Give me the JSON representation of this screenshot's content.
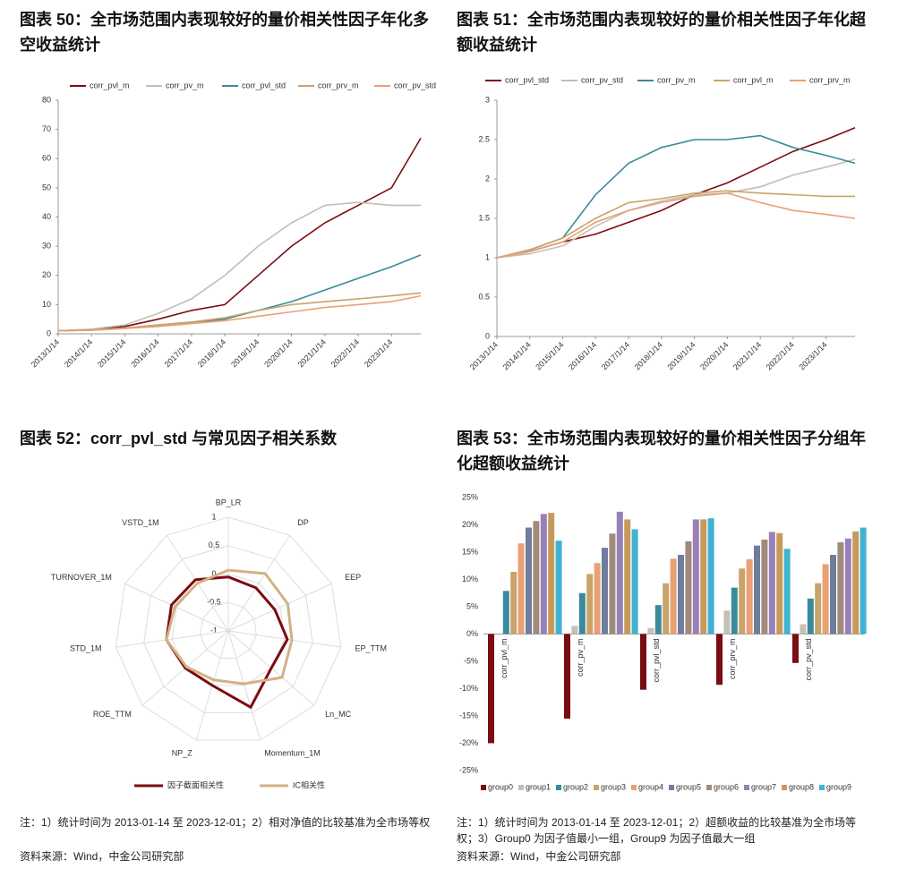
{
  "chart_data": [
    {
      "type": "line",
      "title": "图表 50：全市场范围内表现较好的量价相关性因子年化多空收益统计",
      "x": [
        "2013/1/14",
        "2014/1/14",
        "2015/1/14",
        "2016/1/14",
        "2017/1/14",
        "2018/1/14",
        "2019/1/14",
        "2020/1/14",
        "2021/1/14",
        "2022/1/14",
        "2023/1/14",
        "2023/12/1"
      ],
      "xlim": [
        "2013/1/14",
        "2023/12/1"
      ],
      "xticks": [
        "2013/1/14",
        "2014/1/14",
        "2015/1/14",
        "2016/1/14",
        "2017/1/14",
        "2018/1/14",
        "2019/1/14",
        "2020/1/14",
        "2021/1/14",
        "2022/1/14",
        "2023/1/14"
      ],
      "ylim": [
        0,
        80
      ],
      "yticks": [
        0,
        10,
        20,
        30,
        40,
        50,
        60,
        70,
        80
      ],
      "series": [
        {
          "name": "corr_pvl_m",
          "color": "#7b0c12",
          "values": [
            1,
            1.5,
            2.5,
            5,
            8,
            10,
            20,
            30,
            38,
            44,
            50,
            67
          ]
        },
        {
          "name": "corr_pv_m",
          "color": "#c2bfb2",
          "values": [
            1,
            1.6,
            3,
            7,
            12,
            20,
            30,
            38,
            44,
            45,
            44,
            44
          ]
        },
        {
          "name": "corr_pvl_std",
          "color": "#3a8a9c",
          "values": [
            1,
            1.3,
            2,
            3,
            4,
            5,
            8,
            11,
            15,
            19,
            23,
            27
          ]
        },
        {
          "name": "corr_prv_m",
          "color": "#c9a46a",
          "values": [
            1,
            1.3,
            2,
            3,
            4,
            5.5,
            8,
            10,
            11,
            12,
            13,
            14
          ]
        },
        {
          "name": "corr_pv_std",
          "color": "#e9a074",
          "values": [
            1,
            1.2,
            1.8,
            2.5,
            3.5,
            4.5,
            6,
            7.5,
            9,
            10,
            11,
            13
          ]
        }
      ]
    },
    {
      "type": "line",
      "title": "图表 51：全市场范围内表现较好的量价相关性因子年化超额收益统计",
      "x": [
        "2013/1/14",
        "2014/1/14",
        "2015/1/14",
        "2016/1/14",
        "2017/1/14",
        "2018/1/14",
        "2019/1/14",
        "2020/1/14",
        "2021/1/14",
        "2022/1/14",
        "2023/1/14",
        "2023/12/1"
      ],
      "xlim": [
        "2013/1/14",
        "2023/12/1"
      ],
      "xticks": [
        "2013/1/14",
        "2014/1/14",
        "2015/1/14",
        "2016/1/14",
        "2017/1/14",
        "2018/1/14",
        "2019/1/14",
        "2020/1/14",
        "2021/1/14",
        "2022/1/14",
        "2023/1/14"
      ],
      "ylim": [
        0,
        3
      ],
      "yticks": [
        0,
        0.5,
        1,
        1.5,
        2,
        2.5,
        3
      ],
      "series": [
        {
          "name": "corr_pvl_std",
          "color": "#7b0c12",
          "values": [
            1,
            1.08,
            1.2,
            1.3,
            1.45,
            1.6,
            1.8,
            1.95,
            2.15,
            2.35,
            2.5,
            2.65
          ]
        },
        {
          "name": "corr_pv_std",
          "color": "#c2bfb2",
          "values": [
            1,
            1.05,
            1.15,
            1.4,
            1.6,
            1.72,
            1.8,
            1.82,
            1.9,
            2.05,
            2.15,
            2.25
          ]
        },
        {
          "name": "corr_pv_m",
          "color": "#3a8a9c",
          "values": [
            1,
            1.1,
            1.25,
            1.8,
            2.2,
            2.4,
            2.5,
            2.5,
            2.55,
            2.4,
            2.3,
            2.2
          ]
        },
        {
          "name": "corr_pvl_m",
          "color": "#c9a46a",
          "values": [
            1,
            1.1,
            1.25,
            1.5,
            1.7,
            1.75,
            1.82,
            1.85,
            1.82,
            1.8,
            1.78,
            1.78
          ]
        },
        {
          "name": "corr_prv_m",
          "color": "#e9a074",
          "values": [
            1,
            1.08,
            1.2,
            1.45,
            1.6,
            1.7,
            1.78,
            1.82,
            1.7,
            1.6,
            1.55,
            1.5
          ]
        }
      ]
    },
    {
      "type": "radar",
      "title": "图表 52：corr_pvl_std 与常见因子相关系数",
      "categories": [
        "BP_LR",
        "DP",
        "EEP",
        "EP_TTM",
        "Ln_MC",
        "Momentum_1M",
        "NP_Z",
        "ROE_TTM",
        "STD_1M",
        "TURNOVER_1M",
        "VSTD_1M"
      ],
      "rlim": [
        -1,
        1
      ],
      "rticks": [
        1,
        0.5,
        0,
        -0.5,
        -1
      ],
      "series": [
        {
          "name": "因子截面相关性",
          "color": "#7b0c12",
          "values": [
            -0.05,
            -0.1,
            -0.1,
            0.05,
            0,
            0.4,
            0,
            0,
            0.1,
            0.1,
            0.07
          ]
        },
        {
          "name": "IC相关性",
          "color": "#d2b184",
          "values": [
            0.07,
            0.2,
            0.15,
            0.13,
            0.25,
            -0.03,
            -0.1,
            -0.03,
            0.1,
            0.03,
            0
          ]
        }
      ]
    },
    {
      "type": "bar",
      "title": "图表 53：全市场范围内表现较好的量价相关性因子分组年化超额收益统计",
      "categories": [
        "corr_pvl_m",
        "corr_pv_m",
        "corr_pvl_std",
        "corr_prv_m",
        "corr_pv_std"
      ],
      "ylim": [
        -25,
        25
      ],
      "yticks": [
        {
          "value": -25,
          "label": "-25%"
        },
        {
          "value": -20,
          "label": "-20%"
        },
        {
          "value": -15,
          "label": "-15%"
        },
        {
          "value": -10,
          "label": "-10%"
        },
        {
          "value": -5,
          "label": "-5%"
        },
        {
          "value": 0,
          "label": "0%"
        },
        {
          "value": 5,
          "label": "5%"
        },
        {
          "value": 10,
          "label": "10%"
        },
        {
          "value": 15,
          "label": "15%"
        },
        {
          "value": 20,
          "label": "20%"
        },
        {
          "value": 25,
          "label": "25%"
        }
      ],
      "series": [
        {
          "name": "group0",
          "color": "#7b0c12",
          "values": [
            -20,
            -15.5,
            -10.2,
            -9.3,
            -5.3
          ]
        },
        {
          "name": "group1",
          "color": "#c7c1b3",
          "values": [
            0,
            1.5,
            1.1,
            4.3,
            1.8
          ]
        },
        {
          "name": "group2",
          "color": "#3a8a9c",
          "values": [
            7.9,
            7.5,
            5.3,
            8.5,
            6.5
          ]
        },
        {
          "name": "group3",
          "color": "#c9a46a",
          "values": [
            11.4,
            11,
            9.3,
            12,
            9.3
          ]
        },
        {
          "name": "group4",
          "color": "#e9a074",
          "values": [
            16.6,
            13,
            13.8,
            13.7,
            12.8
          ]
        },
        {
          "name": "group5",
          "color": "#6f7d9c",
          "values": [
            19.5,
            15.8,
            14.5,
            16.2,
            14.5
          ]
        },
        {
          "name": "group6",
          "color": "#a08a7c",
          "values": [
            20.7,
            18.4,
            17,
            17.3,
            16.8
          ]
        },
        {
          "name": "group7",
          "color": "#9880b8",
          "values": [
            22,
            22.4,
            21,
            18.7,
            17.5
          ]
        },
        {
          "name": "group8",
          "color": "#c89a5a",
          "values": [
            22.2,
            21,
            21,
            18.5,
            18.8
          ]
        },
        {
          "name": "group9",
          "color": "#41b2d2",
          "values": [
            17.1,
            19.2,
            21.2,
            15.6,
            19.5
          ]
        }
      ]
    }
  ],
  "notes": {
    "left": [
      "注：1）统计时间为 2013-01-14 至 2023-12-01；2）相对净值的比较基准为全市场等权",
      "资料来源：Wind，中金公司研究部"
    ],
    "right": [
      "注：1）统计时间为 2013-01-14 至 2023-12-01；2）超额收益的比较基准为全市场等权；3）Group0 为因子值最小一组，Group9 为因子值最大一组",
      "资料来源：Wind，中金公司研究部"
    ]
  }
}
